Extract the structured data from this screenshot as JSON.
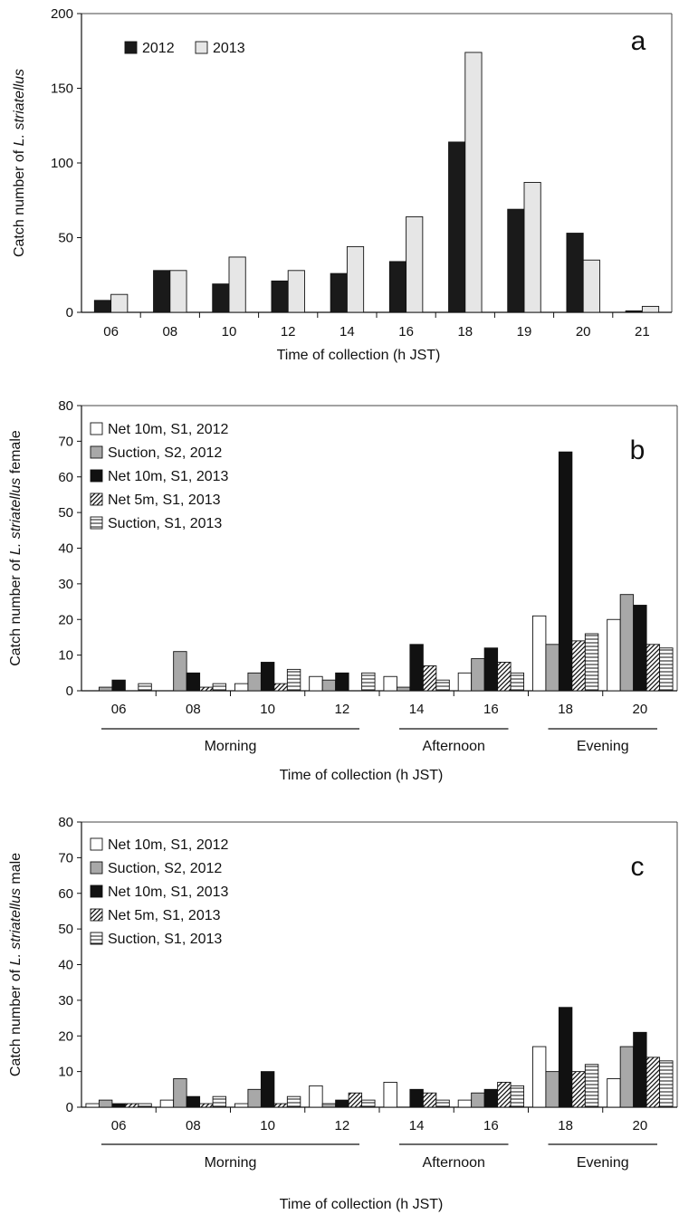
{
  "chart_data": [
    {
      "type": "bar",
      "panel_letter": "a",
      "ylabel_pre": "Catch number of ",
      "ylabel_it": "L. striatellus",
      "ylabel_post": "",
      "xlabel": "Time of collection (h JST)",
      "ylim": [
        0,
        200
      ],
      "yticks": [
        0,
        50,
        100,
        150,
        200
      ],
      "categories": [
        "06",
        "08",
        "10",
        "12",
        "14",
        "16",
        "18",
        "19",
        "20",
        "21"
      ],
      "series": [
        {
          "name": "2012",
          "color": "#1a1a1a",
          "pattern": "solid",
          "values": [
            8,
            28,
            19,
            21,
            26,
            34,
            114,
            69,
            53,
            1
          ]
        },
        {
          "name": "2013",
          "color": "#e6e6e6",
          "pattern": "solid",
          "values": [
            12,
            28,
            37,
            28,
            44,
            64,
            174,
            87,
            35,
            4
          ]
        }
      ],
      "legend": "top-left"
    },
    {
      "type": "bar",
      "panel_letter": "b",
      "ylabel_pre": "Catch number of ",
      "ylabel_it": "L. striatellus",
      "ylabel_post": " female",
      "xlabel": "Time of collection (h JST)",
      "ylim": [
        0,
        80
      ],
      "yticks": [
        0,
        10,
        20,
        30,
        40,
        50,
        60,
        70,
        80
      ],
      "categories": [
        "06",
        "08",
        "10",
        "12",
        "14",
        "16",
        "18",
        "20"
      ],
      "periods": [
        {
          "label": "Morning",
          "from": 0,
          "to": 3
        },
        {
          "label": "Afternoon",
          "from": 4,
          "to": 5
        },
        {
          "label": "Evening",
          "from": 6,
          "to": 7
        }
      ],
      "series": [
        {
          "name": "Net 10m, S1, 2012",
          "color": "#ffffff",
          "pattern": "solid",
          "values": [
            0,
            0,
            2,
            4,
            4,
            5,
            21,
            20
          ]
        },
        {
          "name": "Suction, S2, 2012",
          "color": "#a8a8a8",
          "pattern": "solid",
          "values": [
            1,
            11,
            5,
            3,
            1,
            9,
            13,
            27
          ]
        },
        {
          "name": "Net 10m, S1, 2013",
          "color": "#111111",
          "pattern": "solid",
          "values": [
            3,
            5,
            8,
            5,
            13,
            12,
            67,
            24
          ]
        },
        {
          "name": "Net 5m, S1, 2013",
          "color": "#ffffff",
          "pattern": "diagonal",
          "values": [
            0,
            1,
            2,
            0,
            7,
            8,
            14,
            13
          ]
        },
        {
          "name": "Suction, S1, 2013",
          "color": "#ffffff",
          "pattern": "horizontal",
          "values": [
            2,
            2,
            6,
            5,
            3,
            5,
            16,
            12
          ]
        }
      ],
      "legend": "top-left"
    },
    {
      "type": "bar",
      "panel_letter": "c",
      "ylabel_pre": "Catch number of ",
      "ylabel_it": "L. striatellus",
      "ylabel_post": " male",
      "xlabel": "Time of collection (h JST)",
      "ylim": [
        0,
        80
      ],
      "yticks": [
        0,
        10,
        20,
        30,
        40,
        50,
        60,
        70,
        80
      ],
      "categories": [
        "06",
        "08",
        "10",
        "12",
        "14",
        "16",
        "18",
        "20"
      ],
      "periods": [
        {
          "label": "Morning",
          "from": 0,
          "to": 3
        },
        {
          "label": "Afternoon",
          "from": 4,
          "to": 5
        },
        {
          "label": "Evening",
          "from": 6,
          "to": 7
        }
      ],
      "series": [
        {
          "name": "Net 10m, S1, 2012",
          "color": "#ffffff",
          "pattern": "solid",
          "values": [
            1,
            2,
            1,
            6,
            7,
            2,
            17,
            8
          ]
        },
        {
          "name": "Suction, S2, 2012",
          "color": "#a8a8a8",
          "pattern": "solid",
          "values": [
            2,
            8,
            5,
            1,
            0,
            4,
            10,
            17
          ]
        },
        {
          "name": "Net 10m, S1, 2013",
          "color": "#111111",
          "pattern": "solid",
          "values": [
            1,
            3,
            10,
            2,
            5,
            5,
            28,
            21
          ]
        },
        {
          "name": "Net 5m, S1, 2013",
          "color": "#ffffff",
          "pattern": "diagonal",
          "values": [
            1,
            1,
            1,
            4,
            4,
            7,
            10,
            14
          ]
        },
        {
          "name": "Suction, S1, 2013",
          "color": "#ffffff",
          "pattern": "horizontal",
          "values": [
            1,
            3,
            3,
            2,
            2,
            6,
            12,
            13
          ]
        }
      ],
      "legend": "top-left"
    }
  ]
}
